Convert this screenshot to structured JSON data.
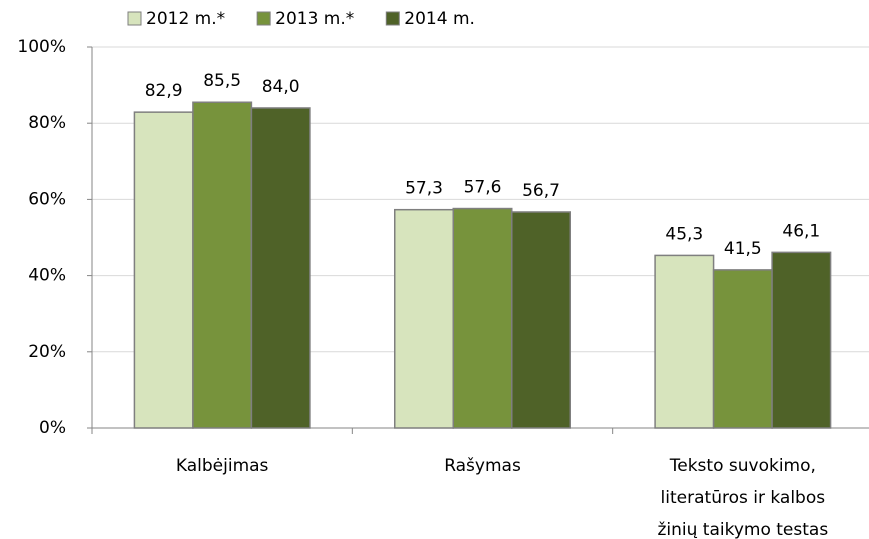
{
  "chart_data": {
    "type": "bar",
    "categories": [
      "Kalbėjimas",
      "Rašymas",
      [
        "Teksto suvokimo,",
        "literatūros ir kalbos",
        "žinių taikymo testas"
      ]
    ],
    "series": [
      {
        "name": "2012 m.*",
        "color": "#d7e4bd",
        "values": [
          82.9,
          57.3,
          45.3
        ],
        "value_labels": [
          "82,9",
          "57,3",
          "45,3"
        ]
      },
      {
        "name": "2013 m.*",
        "color": "#77933c",
        "values": [
          85.5,
          57.6,
          41.5
        ],
        "value_labels": [
          "85,5",
          "57,6",
          "41,5"
        ]
      },
      {
        "name": "2014 m.",
        "color": "#4f6228",
        "values": [
          84.0,
          56.7,
          46.1
        ],
        "value_labels": [
          "84,0",
          "56,7",
          "46,1"
        ]
      }
    ],
    "ylim": [
      0,
      100
    ],
    "yticks": [
      {
        "value": 0,
        "label": "0%"
      },
      {
        "value": 20,
        "label": "20%"
      },
      {
        "value": 40,
        "label": "40%"
      },
      {
        "value": 60,
        "label": "60%"
      },
      {
        "value": 80,
        "label": "80%"
      },
      {
        "value": 100,
        "label": "100%"
      }
    ],
    "grid": true,
    "legend": "top"
  }
}
